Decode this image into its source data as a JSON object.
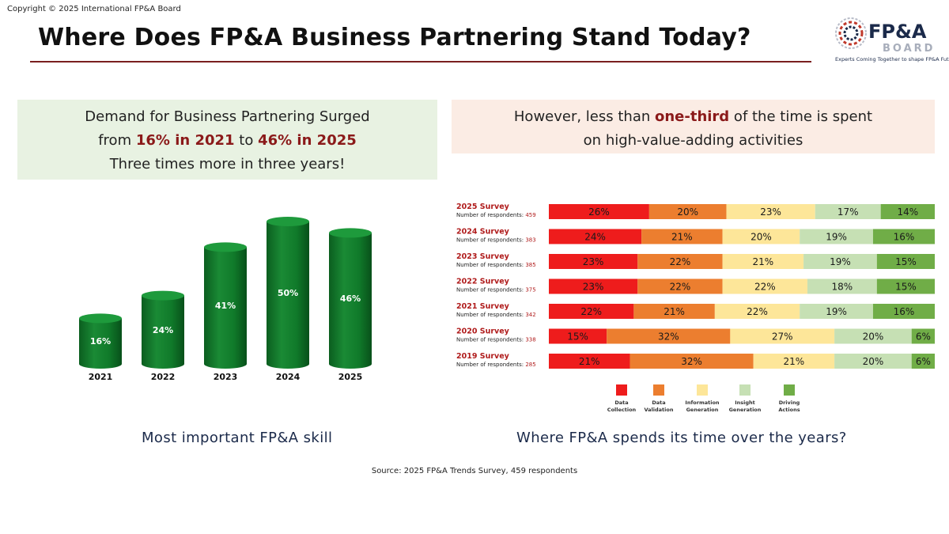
{
  "copyright": "Copyright © 2025 International FP&A Board",
  "title": "Where Does FP&A Business Partnering Stand Today?",
  "logo": {
    "text": "FP&A",
    "sub": "BOARD",
    "tagline": "Experts Coming Together to shape FP&A Future"
  },
  "left_box": {
    "line1": "Demand for Business Partnering Surged",
    "line2_pre": "from ",
    "line2_hl1": "16% in 2021",
    "line2_mid": " to ",
    "line2_hl2": "46% in 2025",
    "line3": "Three times more in three years!"
  },
  "right_box": {
    "line1_pre": "However, less than ",
    "line1_hl": "one-third",
    "line1_post": " of the time is spent",
    "line2": "on high-value-adding activities"
  },
  "captions": {
    "left": "Most important FP&A skill",
    "right": "Where FP&A spends its time over the years?"
  },
  "source": "Source: 2025 FP&A Trends Survey, 459 respondents",
  "colors": {
    "bar_green": "#0f7a2a",
    "data_collection": "#ee1c1c",
    "data_validation": "#ec7e2f",
    "information_generation": "#fde699",
    "insight_generation": "#c6e0b4",
    "driving_actions": "#70ad47",
    "survey_label": "#b01c1c"
  },
  "chart_data": [
    {
      "type": "bar",
      "categories": [
        "2021",
        "2022",
        "2023",
        "2024",
        "2025"
      ],
      "values": [
        16,
        24,
        41,
        50,
        46
      ],
      "labels": [
        "16%",
        "24%",
        "41%",
        "50%",
        "46%"
      ],
      "ylim": [
        0,
        55
      ]
    },
    {
      "type": "bar",
      "orientation": "horizontal-stacked-100",
      "legend": [
        "Data Collection",
        "Data Validation",
        "Information Generation",
        "Insight Generation",
        "Driving Actions"
      ],
      "legend_placement": "bottom",
      "rows": [
        {
          "survey": "2025 Survey",
          "respondents_label": "Number of respondents:",
          "respondents": "459",
          "values": [
            26,
            20,
            23,
            17,
            14
          ]
        },
        {
          "survey": "2024 Survey",
          "respondents_label": "Number of respondents:",
          "respondents": "383",
          "values": [
            24,
            21,
            20,
            19,
            16
          ]
        },
        {
          "survey": "2023 Survey",
          "respondents_label": "Number of respondents:",
          "respondents": "385",
          "values": [
            23,
            22,
            21,
            19,
            15
          ]
        },
        {
          "survey": "2022 Survey",
          "respondents_label": "Number of respondents:",
          "respondents": "375",
          "values": [
            23,
            22,
            22,
            18,
            15
          ]
        },
        {
          "survey": "2021 Survey",
          "respondents_label": "Number of respondents:",
          "respondents": "342",
          "values": [
            22,
            21,
            22,
            19,
            16
          ]
        },
        {
          "survey": "2020 Survey",
          "respondents_label": "Number of respondents:",
          "respondents": "338",
          "values": [
            15,
            32,
            27,
            20,
            6
          ]
        },
        {
          "survey": "2019 Survey",
          "respondents_label": "Number of respondents:",
          "respondents": "285",
          "values": [
            21,
            32,
            21,
            20,
            6
          ]
        }
      ]
    }
  ]
}
